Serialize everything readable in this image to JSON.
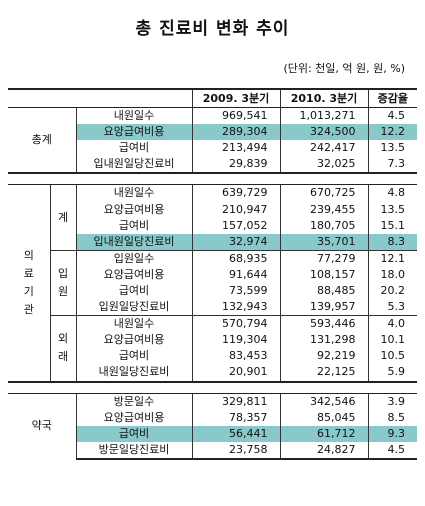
{
  "title": "총 진료비 변화 추이",
  "unit": "(단위: 천일, 억 원, 원, %)",
  "headers": {
    "item": "",
    "col1": "2009. 3분기",
    "col2": "2010. 3분기",
    "col3": "증감율"
  },
  "sections": {
    "total": {
      "label": "총계",
      "rows": [
        {
          "item": "내원일수",
          "v1": "969,541",
          "v2": "1,013,271",
          "v3": "4.5"
        },
        {
          "item": "요양급여비용",
          "v1": "289,304",
          "v2": "324,500",
          "v3": "12.2"
        },
        {
          "item": "급여비",
          "v1": "213,494",
          "v2": "242,417",
          "v3": "13.5"
        },
        {
          "item": "입내원일당진료비",
          "v1": "29,839",
          "v2": "32,025",
          "v3": "7.3"
        }
      ]
    },
    "medical": {
      "label": "의료기관",
      "label_chars": [
        "의",
        "료",
        "기",
        "관"
      ],
      "groups": {
        "sum": {
          "label": "계",
          "rows": [
            {
              "item": "내원일수",
              "v1": "639,729",
              "v2": "670,725",
              "v3": "4.8"
            },
            {
              "item": "요양급여비용",
              "v1": "210,947",
              "v2": "239,455",
              "v3": "13.5"
            },
            {
              "item": "급여비",
              "v1": "157,052",
              "v2": "180,705",
              "v3": "15.1"
            },
            {
              "item": "입내원일당진료비",
              "v1": "32,974",
              "v2": "35,701",
              "v3": "8.3"
            }
          ]
        },
        "inpatient": {
          "label": "입원",
          "label_chars": [
            "입",
            "원"
          ],
          "rows": [
            {
              "item": "입원일수",
              "v1": "68,935",
              "v2": "77,279",
              "v3": "12.1"
            },
            {
              "item": "요양급여비용",
              "v1": "91,644",
              "v2": "108,157",
              "v3": "18.0"
            },
            {
              "item": "급여비",
              "v1": "73,599",
              "v2": "88,485",
              "v3": "20.2"
            },
            {
              "item": "입원일당진료비",
              "v1": "132,943",
              "v2": "139,957",
              "v3": "5.3"
            }
          ]
        },
        "outpatient": {
          "label": "외래",
          "label_chars": [
            "외",
            "래"
          ],
          "rows": [
            {
              "item": "내원일수",
              "v1": "570,794",
              "v2": "593,446",
              "v3": "4.0"
            },
            {
              "item": "요양급여비용",
              "v1": "119,304",
              "v2": "131,298",
              "v3": "10.1"
            },
            {
              "item": "급여비",
              "v1": "83,453",
              "v2": "92,219",
              "v3": "10.5"
            },
            {
              "item": "내원일당진료비",
              "v1": "20,901",
              "v2": "22,125",
              "v3": "5.9"
            }
          ]
        }
      }
    },
    "pharmacy": {
      "label": "약국",
      "rows": [
        {
          "item": "방문일수",
          "v1": "329,811",
          "v2": "342,546",
          "v3": "3.9"
        },
        {
          "item": "요양급여비용",
          "v1": "78,357",
          "v2": "85,045",
          "v3": "8.5"
        },
        {
          "item": "급여비",
          "v1": "56,441",
          "v2": "61,712",
          "v3": "9.3"
        },
        {
          "item": "방문일당진료비",
          "v1": "23,758",
          "v2": "24,827",
          "v3": "4.5"
        }
      ]
    }
  },
  "colors": {
    "highlight": "#89c9c9"
  }
}
